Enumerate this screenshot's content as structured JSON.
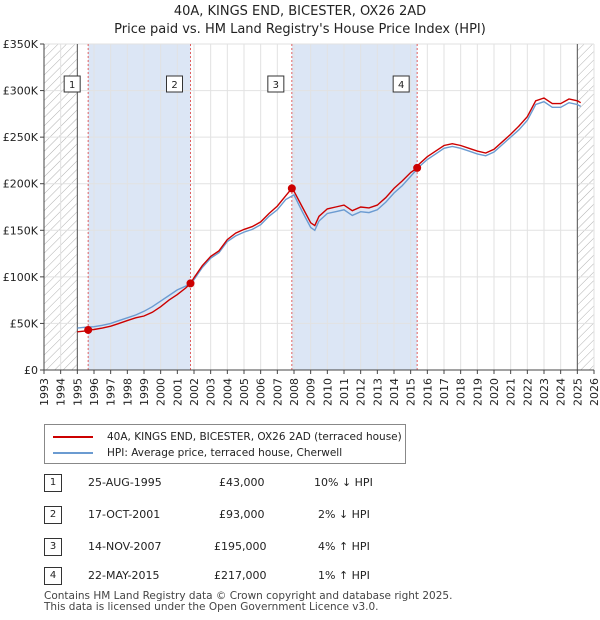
{
  "title_line1": "40A, KINGS END, BICESTER, OX26 2AD",
  "title_line2": "Price paid vs. HM Land Registry's House Price Index (HPI)",
  "legend": {
    "property_label": "40A, KINGS END, BICESTER, OX26 2AD (terraced house)",
    "hpi_label": "HPI: Average price, terraced house, Cherwell",
    "property_color": "#cc0000",
    "hpi_color": "#6b9bd1"
  },
  "sales": [
    {
      "num": "1",
      "date": "25-AUG-1995",
      "price": "£43,000",
      "hpi": "10% ↓ HPI"
    },
    {
      "num": "2",
      "date": "17-OCT-2001",
      "price": "£93,000",
      "hpi": "2% ↓ HPI"
    },
    {
      "num": "3",
      "date": "14-NOV-2007",
      "price": "£195,000",
      "hpi": "4% ↑ HPI"
    },
    {
      "num": "4",
      "date": "22-MAY-2015",
      "price": "£217,000",
      "hpi": "1% ↑ HPI"
    }
  ],
  "footer_line1": "Contains HM Land Registry data © Crown copyright and database right 2025.",
  "footer_line2": "This data is licensed under the Open Government Licence v3.0.",
  "chart_data": {
    "type": "line",
    "xlim": [
      1993,
      2026
    ],
    "ylim": [
      0,
      350000
    ],
    "x_ticks": [
      "1993",
      "1994",
      "1995",
      "1996",
      "1997",
      "1998",
      "1999",
      "2000",
      "2001",
      "2002",
      "2003",
      "2004",
      "2005",
      "2006",
      "2007",
      "2008",
      "2009",
      "2010",
      "2011",
      "2012",
      "2013",
      "2014",
      "2015",
      "2016",
      "2017",
      "2018",
      "2019",
      "2020",
      "2021",
      "2022",
      "2023",
      "2024",
      "2025",
      "2026"
    ],
    "y_ticks": [
      {
        "value": 0,
        "label": "£0"
      },
      {
        "value": 50000,
        "label": "£50K"
      },
      {
        "value": 100000,
        "label": "£100K"
      },
      {
        "value": 150000,
        "label": "£150K"
      },
      {
        "value": 200000,
        "label": "£200K"
      },
      {
        "value": 250000,
        "label": "£250K"
      },
      {
        "value": 300000,
        "label": "£300K"
      },
      {
        "value": 350000,
        "label": "£350K"
      }
    ],
    "hatched_ranges": [
      [
        1993,
        1995.0
      ],
      [
        2025.0,
        2026
      ]
    ],
    "shaded_ranges": [
      [
        1995.65,
        2001.79
      ],
      [
        2007.87,
        2015.39
      ]
    ],
    "sale_points": [
      {
        "label": "1",
        "x": 1995.65,
        "y": 43000
      },
      {
        "label": "2",
        "x": 2001.79,
        "y": 93000
      },
      {
        "label": "3",
        "x": 2007.87,
        "y": 195000
      },
      {
        "label": "4",
        "x": 2015.39,
        "y": 217000
      }
    ],
    "series": [
      {
        "name": "HPI: Average price, terraced house, Cherwell",
        "color": "#6b9bd1",
        "x": [
          1995.0,
          1995.5,
          1996.0,
          1996.5,
          1997.0,
          1997.5,
          1998.0,
          1998.5,
          1999.0,
          1999.5,
          2000.0,
          2000.5,
          2001.0,
          2001.5,
          2002.0,
          2002.5,
          2003.0,
          2003.5,
          2004.0,
          2004.5,
          2005.0,
          2005.5,
          2006.0,
          2006.5,
          2007.0,
          2007.5,
          2008.0,
          2008.5,
          2009.0,
          2009.25,
          2009.5,
          2010.0,
          2010.5,
          2011.0,
          2011.5,
          2012.0,
          2012.5,
          2013.0,
          2013.5,
          2014.0,
          2014.5,
          2015.0,
          2015.5,
          2016.0,
          2016.5,
          2017.0,
          2017.5,
          2018.0,
          2018.5,
          2019.0,
          2019.5,
          2020.0,
          2020.5,
          2021.0,
          2021.5,
          2022.0,
          2022.5,
          2023.0,
          2023.5,
          2024.0,
          2024.5,
          2025.0,
          2025.2
        ],
        "y": [
          45000,
          46000,
          46500,
          48000,
          50000,
          53000,
          56000,
          59000,
          63000,
          68000,
          74000,
          80000,
          86000,
          90000,
          97000,
          110000,
          120000,
          126000,
          138000,
          144000,
          148000,
          151000,
          156000,
          165000,
          172000,
          183000,
          188000,
          170000,
          153000,
          150000,
          160000,
          168000,
          170000,
          172000,
          166000,
          170000,
          169000,
          172000,
          180000,
          190000,
          198000,
          208000,
          218000,
          226000,
          232000,
          238000,
          240000,
          238000,
          235000,
          232000,
          230000,
          234000,
          242000,
          250000,
          258000,
          268000,
          285000,
          288000,
          282000,
          282000,
          287000,
          285000,
          283000
        ]
      },
      {
        "name": "40A, KINGS END, BICESTER, OX26 2AD (terraced house)",
        "color": "#cc0000",
        "x": [
          1995.0,
          1995.5,
          1995.65,
          1996.0,
          1996.5,
          1997.0,
          1997.5,
          1998.0,
          1998.5,
          1999.0,
          1999.5,
          2000.0,
          2000.5,
          2001.0,
          2001.5,
          2001.79,
          2002.0,
          2002.5,
          2003.0,
          2003.5,
          2004.0,
          2004.5,
          2005.0,
          2005.5,
          2006.0,
          2006.5,
          2007.0,
          2007.5,
          2007.87,
          2008.0,
          2008.5,
          2009.0,
          2009.25,
          2009.5,
          2010.0,
          2010.5,
          2011.0,
          2011.5,
          2012.0,
          2012.5,
          2013.0,
          2013.5,
          2014.0,
          2014.5,
          2015.0,
          2015.39,
          2015.5,
          2016.0,
          2016.5,
          2017.0,
          2017.5,
          2018.0,
          2018.5,
          2019.0,
          2019.5,
          2020.0,
          2020.5,
          2021.0,
          2021.5,
          2022.0,
          2022.5,
          2023.0,
          2023.5,
          2024.0,
          2024.5,
          2025.0,
          2025.2
        ],
        "y": [
          41000,
          42000,
          43000,
          43500,
          45000,
          47000,
          50000,
          53000,
          56000,
          58000,
          62000,
          68000,
          75000,
          81000,
          88000,
          93000,
          99000,
          112000,
          122000,
          128000,
          140000,
          147000,
          151000,
          154000,
          159000,
          168000,
          176000,
          187000,
          195000,
          192000,
          175000,
          158000,
          155000,
          165000,
          173000,
          175000,
          177000,
          171000,
          175000,
          174000,
          177000,
          185000,
          195000,
          203000,
          212000,
          217000,
          221000,
          229000,
          235000,
          241000,
          243000,
          241000,
          238000,
          235000,
          233000,
          237000,
          245000,
          253000,
          262000,
          272000,
          289000,
          292000,
          286000,
          286000,
          291000,
          289000,
          287000
        ]
      }
    ]
  }
}
